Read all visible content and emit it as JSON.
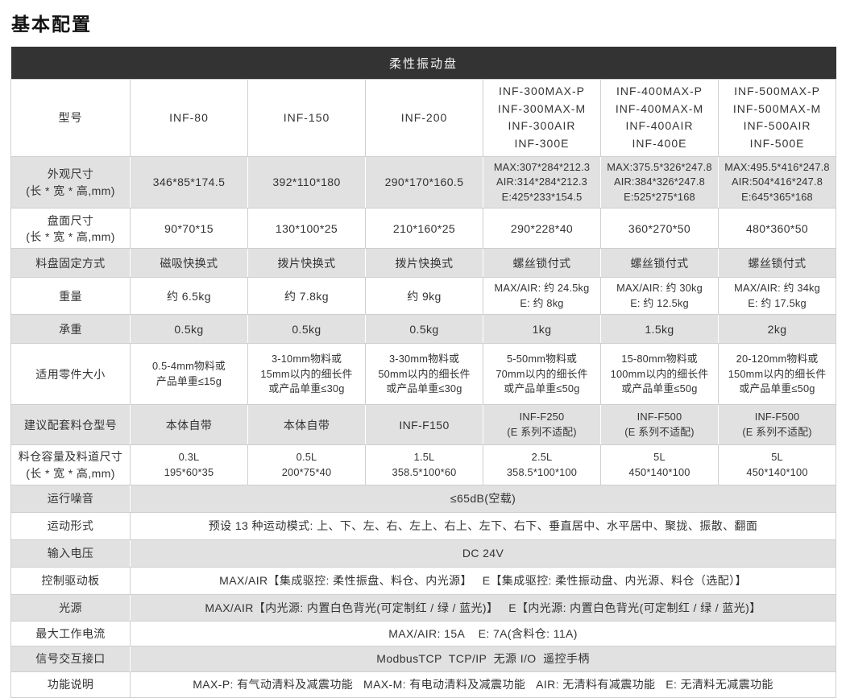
{
  "page": {
    "title": "基本配置"
  },
  "colors": {
    "header_bg": "#333333",
    "header_text": "#f5f5f5",
    "shaded_row_bg": "#e1e1e1",
    "border": "#cfcfcf",
    "text": "#333333"
  },
  "table": {
    "header": "柔性振动盘",
    "rows": [
      {
        "label": [
          "型号"
        ],
        "shaded": false,
        "cells": [
          [
            "INF-80"
          ],
          [
            "INF-150"
          ],
          [
            "INF-200"
          ],
          [
            "INF-300MAX-P",
            "INF-300MAX-M",
            "INF-300AIR",
            "INF-300E"
          ],
          [
            "INF-400MAX-P",
            "INF-400MAX-M",
            "INF-400AIR",
            "INF-400E"
          ],
          [
            "INF-500MAX-P",
            "INF-500MAX-M",
            "INF-500AIR",
            "INF-500E"
          ]
        ]
      },
      {
        "label": [
          "外观尺寸",
          "(长 * 宽 * 高,mm)"
        ],
        "shaded": true,
        "cells": [
          [
            "346*85*174.5"
          ],
          [
            "392*110*180"
          ],
          [
            "290*170*160.5"
          ],
          [
            "MAX:307*284*212.3",
            "AIR:314*284*212.3",
            "E:425*233*154.5"
          ],
          [
            "MAX:375.5*326*247.8",
            "AIR:384*326*247.8",
            "E:525*275*168"
          ],
          [
            "MAX:495.5*416*247.8",
            "AIR:504*416*247.8",
            "E:645*365*168"
          ]
        ]
      },
      {
        "label": [
          "盘面尺寸",
          "(长 * 宽 * 高,mm)"
        ],
        "shaded": false,
        "cells": [
          [
            "90*70*15"
          ],
          [
            "130*100*25"
          ],
          [
            "210*160*25"
          ],
          [
            "290*228*40"
          ],
          [
            "360*270*50"
          ],
          [
            "480*360*50"
          ]
        ]
      },
      {
        "label": [
          "料盘固定方式"
        ],
        "shaded": true,
        "cells": [
          [
            "磁吸快换式"
          ],
          [
            "拨片快换式"
          ],
          [
            "拨片快换式"
          ],
          [
            "螺丝锁付式"
          ],
          [
            "螺丝锁付式"
          ],
          [
            "螺丝锁付式"
          ]
        ]
      },
      {
        "label": [
          "重量"
        ],
        "shaded": false,
        "cells": [
          [
            "约 6.5kg"
          ],
          [
            "约 7.8kg"
          ],
          [
            "约 9kg"
          ],
          [
            "MAX/AIR: 约 24.5kg",
            "E: 约 8kg"
          ],
          [
            "MAX/AIR: 约 30kg",
            "E: 约 12.5kg"
          ],
          [
            "MAX/AIR: 约 34kg",
            "E: 约 17.5kg"
          ]
        ]
      },
      {
        "label": [
          "承重"
        ],
        "shaded": true,
        "cells": [
          [
            "0.5kg"
          ],
          [
            "0.5kg"
          ],
          [
            "0.5kg"
          ],
          [
            "1kg"
          ],
          [
            "1.5kg"
          ],
          [
            "2kg"
          ]
        ]
      },
      {
        "label": [
          "适用零件大小"
        ],
        "shaded": false,
        "cells": [
          [
            "0.5-4mm物料或",
            "产品单重≤15g"
          ],
          [
            "3-10mm物料或",
            "15mm以内的细长件",
            "或产品单重≤30g"
          ],
          [
            "3-30mm物料或",
            "50mm以内的细长件",
            "或产品单重≤30g"
          ],
          [
            "5-50mm物料或",
            "70mm以内的细长件",
            "或产品单重≤50g"
          ],
          [
            "15-80mm物料或",
            "100mm以内的细长件",
            "或产品单重≤50g"
          ],
          [
            "20-120mm物料或",
            "150mm以内的细长件",
            "或产品单重≤50g"
          ]
        ]
      },
      {
        "label": [
          "建议配套料仓型号"
        ],
        "shaded": true,
        "cells": [
          [
            "本体自带"
          ],
          [
            "本体自带"
          ],
          [
            "INF-F150"
          ],
          [
            "INF-F250",
            "(E 系列不适配)"
          ],
          [
            "INF-F500",
            "(E 系列不适配)"
          ],
          [
            "INF-F500",
            "(E 系列不适配)"
          ]
        ]
      },
      {
        "label": [
          "料仓容量及料道尺寸",
          "(长 * 宽 * 高,mm)"
        ],
        "shaded": false,
        "cells": [
          [
            "0.3L",
            "195*60*35"
          ],
          [
            "0.5L",
            "200*75*40"
          ],
          [
            "1.5L",
            "358.5*100*60"
          ],
          [
            "2.5L",
            "358.5*100*100"
          ],
          [
            "5L",
            "450*140*100"
          ],
          [
            "5L",
            "450*140*100"
          ]
        ]
      },
      {
        "label": [
          "运行噪音"
        ],
        "shaded": true,
        "span": "≤65dB(空载)"
      },
      {
        "label": [
          "运动形式"
        ],
        "shaded": false,
        "span": "预设 13 种运动模式: 上、下、左、右、左上、右上、左下、右下、垂直居中、水平居中、聚拢、振散、翻面"
      },
      {
        "label": [
          "输入电压"
        ],
        "shaded": true,
        "span": "DC 24V"
      },
      {
        "label": [
          "控制驱动板"
        ],
        "shaded": false,
        "span": "MAX/AIR【集成驱控: 柔性振盘、料仓、内光源】   E【集成驱控: 柔性振动盘、内光源、料仓（选配）】"
      },
      {
        "label": [
          "光源"
        ],
        "shaded": true,
        "span": "MAX/AIR【内光源: 内置白色背光(可定制红 / 绿 / 蓝光)】   E【内光源: 内置白色背光(可定制红 / 绿 / 蓝光)】"
      },
      {
        "label": [
          "最大工作电流"
        ],
        "shaded": false,
        "span": "MAX/AIR: 15A    E: 7A(含料仓: 11A)"
      },
      {
        "label": [
          "信号交互接口"
        ],
        "shaded": true,
        "span": "ModbusTCP  TCP/IP  无源 I/O  遥控手柄"
      },
      {
        "label": [
          "功能说明"
        ],
        "shaded": false,
        "span": "MAX-P: 有气动清料及减震功能   MAX-M: 有电动清料及减震功能   AIR: 无清料有减震功能   E: 无清料无减震功能"
      }
    ]
  }
}
